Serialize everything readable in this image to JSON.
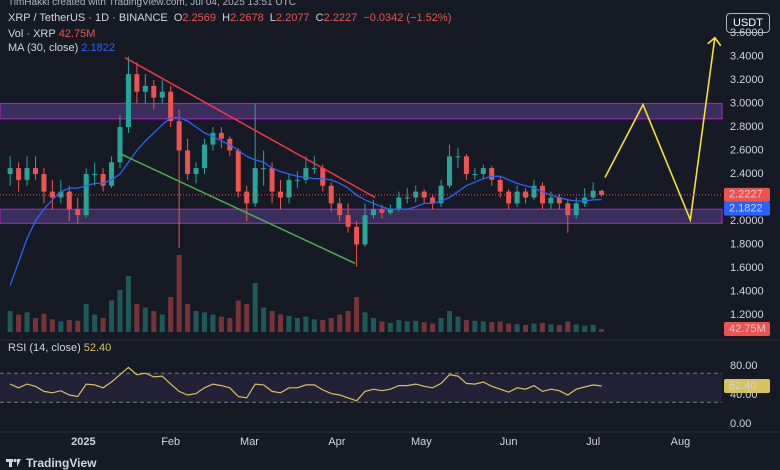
{
  "chart_data": {
    "type": "candlestick",
    "watermark": "TimHakki created with TradingView.com, Jul 04, 2025 13:51 UTC",
    "symbol": "XRP / TetherUS · 1D · BINANCE",
    "ohlc_keys": [
      "O",
      "H",
      "L",
      "C"
    ],
    "change": "−0.0342 (−1.52%)",
    "volume_name": "Vol · XRP",
    "ma_name": "MA (30, close)",
    "rsi_name": "RSI (14, close)",
    "last_value_labels": {
      "volume": "42.75M",
      "rsi": "52.40"
    },
    "currency": "USDT",
    "brand": "TradingView",
    "up_color": "#26a69a",
    "down_color": "#ef5350",
    "ma_color": "#2962ff",
    "rsi_color": "#d8c25a",
    "xlim": [
      -1.2,
      84.25
    ],
    "xticks": [
      {
        "value": 8.67,
        "label": "2025"
      },
      {
        "value": 19,
        "label": "Feb"
      },
      {
        "value": 28.33,
        "label": "Mar"
      },
      {
        "value": 38.67,
        "label": "Apr"
      },
      {
        "value": 48.67,
        "label": "May"
      },
      {
        "value": 59,
        "label": "Jun"
      },
      {
        "value": 69,
        "label": "Jul"
      },
      {
        "value": 79.33,
        "label": "Aug"
      }
    ],
    "ylim": [
      0.987,
      3.881
    ],
    "yticks": [
      {
        "value": 3.6,
        "label": "3.6000"
      },
      {
        "value": 3.4,
        "label": "3.4000"
      },
      {
        "value": 3.2,
        "label": "3.2000"
      },
      {
        "value": 3.0,
        "label": "3.0000"
      },
      {
        "value": 2.8,
        "label": "2.8000"
      },
      {
        "value": 2.6,
        "label": "2.6000"
      },
      {
        "value": 2.4,
        "label": "2.4000"
      },
      {
        "value": 2.0,
        "label": "2.0000"
      },
      {
        "value": 1.8,
        "label": "1.8000"
      },
      {
        "value": 1.6,
        "label": "1.6000"
      },
      {
        "value": 1.4,
        "label": "1.4000"
      },
      {
        "value": 1.2,
        "label": "1.2000"
      }
    ],
    "volume_ylim": [
      0,
      1400
    ],
    "rsi_ylim": [
      -11,
      111.7
    ],
    "rsi_yticks": [
      {
        "value": 80,
        "label": "80.00"
      },
      {
        "value": 40,
        "label": "40.00"
      },
      {
        "value": 0,
        "label": "0.00"
      }
    ],
    "rsi_band": [
      30,
      70
    ],
    "grid": false,
    "candles": [
      [
        2.4,
        2.55,
        2.3,
        2.45
      ],
      [
        2.45,
        2.5,
        2.25,
        2.35
      ],
      [
        2.35,
        2.55,
        2.3,
        2.45
      ],
      [
        2.45,
        2.55,
        2.35,
        2.4
      ],
      [
        2.4,
        2.45,
        2.15,
        2.25
      ],
      [
        2.25,
        2.35,
        2.1,
        2.2
      ],
      [
        2.2,
        2.35,
        2.15,
        2.25
      ],
      [
        2.25,
        2.3,
        2.0,
        2.1
      ],
      [
        2.1,
        2.2,
        1.98,
        2.05
      ],
      [
        2.05,
        2.45,
        2.03,
        2.4
      ],
      [
        2.4,
        2.5,
        2.3,
        2.4
      ],
      [
        2.4,
        2.45,
        2.25,
        2.3
      ],
      [
        2.3,
        2.55,
        2.28,
        2.5
      ],
      [
        2.5,
        2.9,
        2.45,
        2.8
      ],
      [
        2.8,
        3.4,
        2.75,
        3.25
      ],
      [
        3.25,
        3.35,
        3.0,
        3.1
      ],
      [
        3.1,
        3.25,
        3.0,
        3.15
      ],
      [
        3.15,
        3.2,
        2.95,
        3.05
      ],
      [
        3.05,
        3.2,
        3.0,
        3.1
      ],
      [
        3.1,
        3.15,
        2.8,
        2.85
      ],
      [
        2.85,
        2.95,
        1.77,
        2.6
      ],
      [
        2.6,
        2.7,
        2.35,
        2.4
      ],
      [
        2.4,
        2.5,
        2.32,
        2.45
      ],
      [
        2.45,
        2.7,
        2.4,
        2.65
      ],
      [
        2.65,
        2.8,
        2.6,
        2.75
      ],
      [
        2.75,
        2.8,
        2.62,
        2.7
      ],
      [
        2.7,
        2.72,
        2.55,
        2.6
      ],
      [
        2.6,
        2.62,
        2.2,
        2.25
      ],
      [
        2.25,
        2.3,
        2.0,
        2.15
      ],
      [
        2.15,
        3.0,
        2.12,
        2.45
      ],
      [
        2.45,
        2.6,
        2.3,
        2.45
      ],
      [
        2.45,
        2.5,
        2.15,
        2.25
      ],
      [
        2.25,
        2.35,
        2.1,
        2.2
      ],
      [
        2.2,
        2.4,
        2.15,
        2.35
      ],
      [
        2.35,
        2.42,
        2.28,
        2.35
      ],
      [
        2.35,
        2.55,
        2.32,
        2.45
      ],
      [
        2.45,
        2.55,
        2.4,
        2.45
      ],
      [
        2.45,
        2.48,
        2.25,
        2.3
      ],
      [
        2.3,
        2.33,
        2.08,
        2.15
      ],
      [
        2.15,
        2.2,
        2.0,
        2.05
      ],
      [
        2.05,
        2.15,
        1.9,
        1.95
      ],
      [
        1.95,
        2.0,
        1.61,
        1.8
      ],
      [
        1.8,
        2.15,
        1.78,
        2.05
      ],
      [
        2.05,
        2.18,
        2.02,
        2.1
      ],
      [
        2.1,
        2.14,
        2.02,
        2.07
      ],
      [
        2.07,
        2.14,
        2.05,
        2.1
      ],
      [
        2.1,
        2.25,
        2.08,
        2.2
      ],
      [
        2.2,
        2.28,
        2.15,
        2.2
      ],
      [
        2.2,
        2.3,
        2.16,
        2.25
      ],
      [
        2.25,
        2.27,
        2.15,
        2.2
      ],
      [
        2.2,
        2.22,
        2.1,
        2.15
      ],
      [
        2.15,
        2.35,
        2.12,
        2.3
      ],
      [
        2.3,
        2.65,
        2.28,
        2.55
      ],
      [
        2.55,
        2.62,
        2.45,
        2.55
      ],
      [
        2.55,
        2.57,
        2.35,
        2.4
      ],
      [
        2.4,
        2.45,
        2.35,
        2.4
      ],
      [
        2.4,
        2.48,
        2.36,
        2.45
      ],
      [
        2.45,
        2.47,
        2.3,
        2.35
      ],
      [
        2.35,
        2.38,
        2.2,
        2.25
      ],
      [
        2.25,
        2.27,
        2.1,
        2.15
      ],
      [
        2.15,
        2.3,
        2.12,
        2.25
      ],
      [
        2.25,
        2.28,
        2.15,
        2.2
      ],
      [
        2.2,
        2.35,
        2.18,
        2.3
      ],
      [
        2.3,
        2.33,
        2.1,
        2.15
      ],
      [
        2.15,
        2.25,
        2.1,
        2.2
      ],
      [
        2.2,
        2.23,
        2.1,
        2.15
      ],
      [
        2.15,
        2.18,
        1.9,
        2.05
      ],
      [
        2.05,
        2.2,
        2.02,
        2.15
      ],
      [
        2.15,
        2.28,
        2.12,
        2.2
      ],
      [
        2.2,
        2.33,
        2.18,
        2.2569
      ],
      [
        2.2569,
        2.2678,
        2.2077,
        2.2227
      ]
    ],
    "volume": [
      300,
      250,
      280,
      200,
      260,
      180,
      150,
      170,
      160,
      400,
      250,
      200,
      450,
      600,
      800,
      400,
      350,
      300,
      250,
      500,
      1100,
      400,
      300,
      280,
      250,
      220,
      200,
      450,
      400,
      700,
      350,
      300,
      250,
      230,
      200,
      220,
      180,
      170,
      200,
      250,
      300,
      500,
      280,
      200,
      150,
      130,
      170,
      150,
      160,
      140,
      120,
      200,
      300,
      220,
      170,
      160,
      150,
      140,
      150,
      120,
      110,
      100,
      120,
      130,
      110,
      100,
      150,
      110,
      90,
      100,
      42.75
    ],
    "ma": [
      1.45,
      1.65,
      1.85,
      2.0,
      2.1,
      2.18,
      2.25,
      2.28,
      2.28,
      2.3,
      2.32,
      2.32,
      2.35,
      2.4,
      2.5,
      2.6,
      2.68,
      2.75,
      2.82,
      2.88,
      2.88,
      2.85,
      2.8,
      2.75,
      2.72,
      2.68,
      2.65,
      2.6,
      2.55,
      2.52,
      2.5,
      2.45,
      2.42,
      2.4,
      2.38,
      2.37,
      2.36,
      2.36,
      2.35,
      2.32,
      2.28,
      2.22,
      2.18,
      2.15,
      2.12,
      2.1,
      2.1,
      2.1,
      2.12,
      2.15,
      2.15,
      2.17,
      2.2,
      2.25,
      2.3,
      2.33,
      2.36,
      2.38,
      2.38,
      2.35,
      2.32,
      2.3,
      2.28,
      2.25,
      2.22,
      2.2,
      2.18,
      2.17,
      2.17,
      2.18,
      2.1822
    ],
    "rsi": [
      55,
      50,
      55,
      52,
      45,
      43,
      46,
      40,
      38,
      55,
      54,
      50,
      58,
      68,
      78,
      68,
      70,
      65,
      66,
      55,
      45,
      40,
      42,
      50,
      55,
      53,
      50,
      38,
      36,
      55,
      54,
      45,
      43,
      50,
      50,
      54,
      54,
      47,
      42,
      40,
      36,
      32,
      45,
      48,
      46,
      48,
      53,
      53,
      55,
      52,
      50,
      56,
      68,
      66,
      56,
      55,
      58,
      52,
      48,
      44,
      50,
      48,
      53,
      45,
      48,
      46,
      40,
      48,
      51,
      54,
      52.4
    ],
    "zones": [
      [
        2.87,
        3.0
      ],
      [
        1.98,
        2.1
      ]
    ],
    "trendlines": [
      {
        "color": "#f23645",
        "x": [
          13.6,
          43.2
        ],
        "y": [
          3.39,
          2.2
        ]
      },
      {
        "color": "#4caf50",
        "x": [
          12.8,
          40.8
        ],
        "y": [
          2.58,
          1.64
        ]
      }
    ],
    "projection": {
      "color": "#f5e130",
      "x": [
        70.4,
        74.9,
        80.5,
        83.4
      ],
      "y": [
        2.37,
        2.99,
        2.01,
        3.56
      ]
    }
  }
}
